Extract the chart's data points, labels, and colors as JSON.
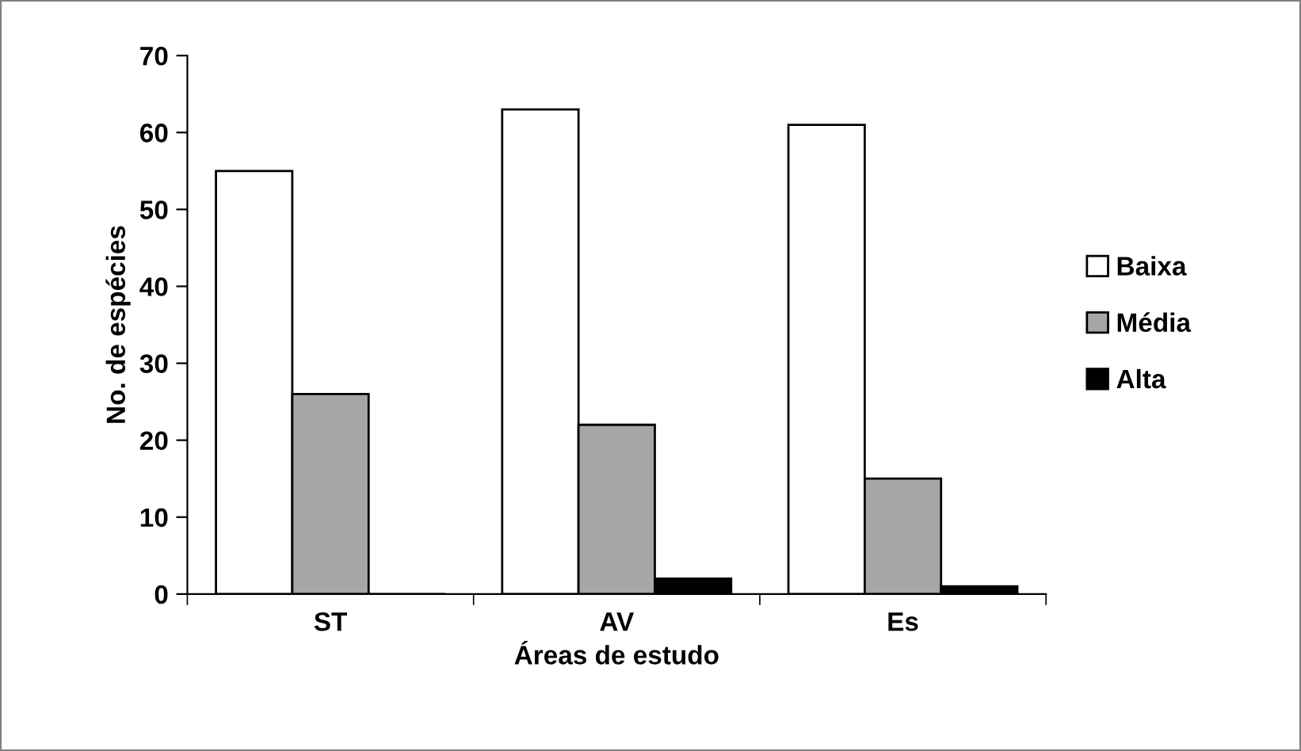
{
  "chart_data": {
    "type": "bar",
    "xlabel": "Áreas de estudo",
    "ylabel": "No. de espécies",
    "categories": [
      "ST",
      "AV",
      "Es"
    ],
    "series": [
      {
        "name": "Baixa",
        "color": "#ffffff",
        "values": [
          55,
          63,
          61
        ]
      },
      {
        "name": "Média",
        "color": "#a6a6a6",
        "values": [
          26,
          22,
          15
        ]
      },
      {
        "name": "Alta",
        "color": "#000000",
        "values": [
          0,
          2,
          1
        ]
      }
    ],
    "ylim": [
      0,
      70
    ],
    "yticks": [
      0,
      10,
      20,
      30,
      40,
      50,
      60,
      70
    ],
    "grid": false,
    "legend": "right"
  }
}
